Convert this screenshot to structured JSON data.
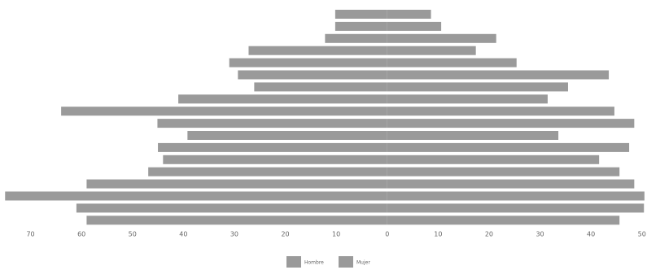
{
  "chart_data": {
    "type": "pyramid",
    "categories": [
      null,
      null,
      null,
      null,
      null,
      null,
      null,
      null,
      null,
      null,
      null,
      null,
      null,
      null,
      null,
      null,
      null,
      null
    ],
    "series": [
      {
        "name": "Hombre",
        "color": "#9a9a9a",
        "side": "left",
        "values": [
          10.2,
          10.2,
          12.2,
          27.2,
          31,
          29.3,
          26.1,
          41,
          64,
          45.1,
          39.2,
          45,
          44,
          46.9,
          59,
          75,
          61,
          59
        ]
      },
      {
        "name": "Mujer",
        "color": "#9a9a9a",
        "side": "right",
        "values": [
          8.6,
          10.6,
          21.4,
          17.4,
          25.4,
          43.5,
          35.5,
          31.5,
          44.6,
          48.5,
          33.6,
          47.5,
          41.6,
          45.6,
          48.5,
          50.5,
          50.4,
          45.6
        ]
      }
    ],
    "xlim": [
      -76,
      51
    ],
    "xticks": [
      {
        "value": -70,
        "label": "70"
      },
      {
        "value": -60,
        "label": "60"
      },
      {
        "value": -50,
        "label": "50"
      },
      {
        "value": -40,
        "label": "40"
      },
      {
        "value": -30,
        "label": "30"
      },
      {
        "value": -20,
        "label": "20"
      },
      {
        "value": -10,
        "label": "10"
      },
      0,
      10,
      20,
      30,
      40,
      50
    ],
    "grid": false
  }
}
